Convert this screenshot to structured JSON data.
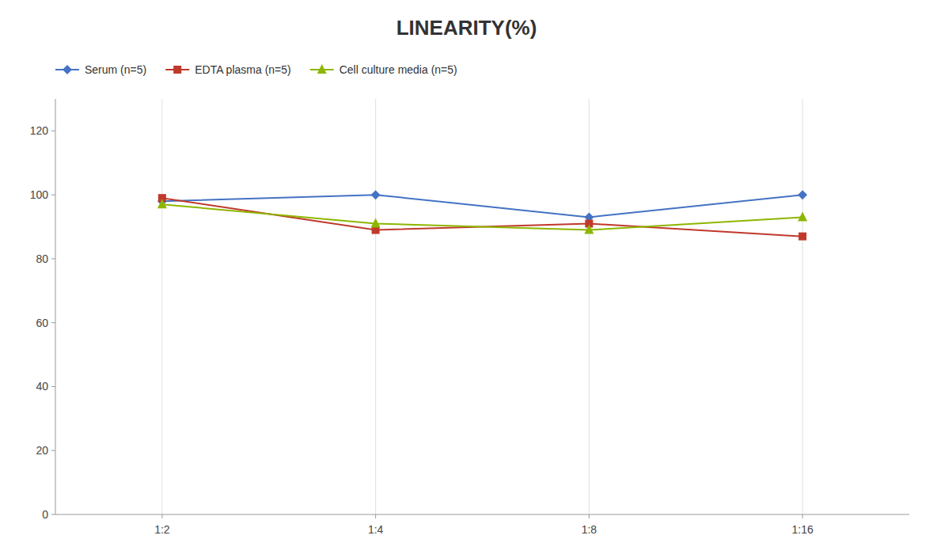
{
  "chart_data": {
    "type": "line",
    "title": "LINEARITY(%)",
    "categories": [
      "1:2",
      "1:4",
      "1:8",
      "1:16"
    ],
    "series": [
      {
        "name": "Serum (n=5)",
        "values": [
          98,
          100,
          93,
          100
        ],
        "color": "#4472C4",
        "marker": "diamond"
      },
      {
        "name": "EDTA plasma (n=5)",
        "values": [
          99,
          89,
          91,
          87
        ],
        "color": "#C0392B",
        "marker": "square"
      },
      {
        "name": "Cell culture media (n=5)",
        "values": [
          97,
          91,
          89,
          93
        ],
        "color": "#8DB600",
        "marker": "triangle"
      }
    ],
    "ylim": [
      0,
      130
    ],
    "yticks": [
      0,
      20,
      40,
      60,
      80,
      100,
      120
    ],
    "grid": true,
    "legend": "top"
  }
}
